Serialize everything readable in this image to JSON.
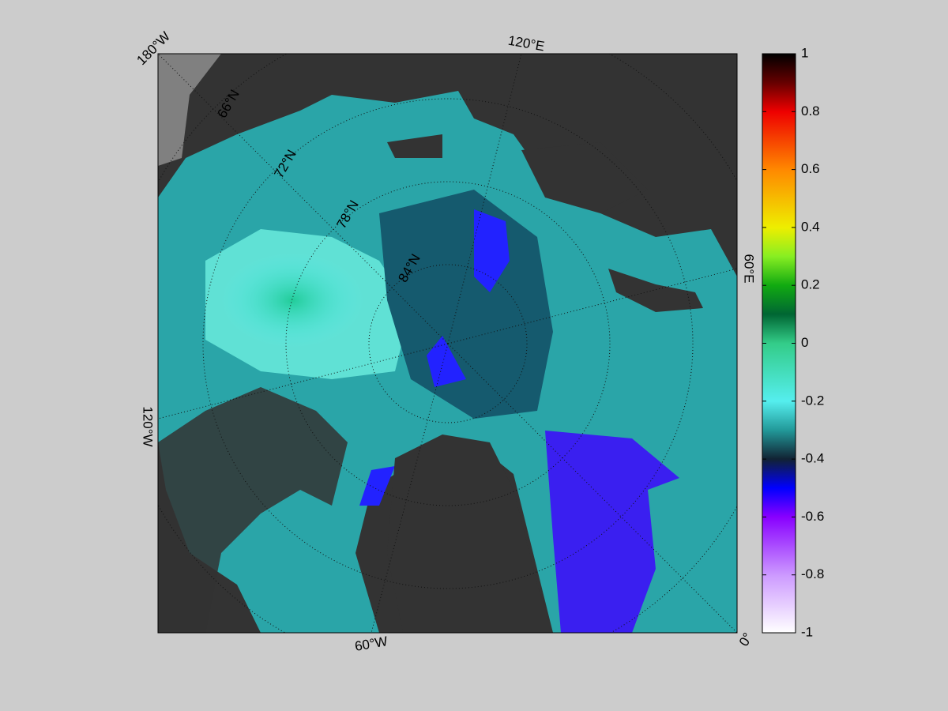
{
  "map": {
    "longitude_labels": [
      "180°W",
      "120°E",
      "60°E",
      "0°",
      "60°W",
      "120°W"
    ],
    "latitude_labels": [
      "66°N",
      "72°N",
      "78°N",
      "84°N"
    ]
  },
  "colorbar": {
    "lim": [
      -1,
      1
    ],
    "ticks": [
      1,
      0.8,
      0.6,
      0.4,
      0.2,
      0,
      -0.2,
      -0.4,
      -0.6,
      -0.8,
      -1
    ]
  }
}
